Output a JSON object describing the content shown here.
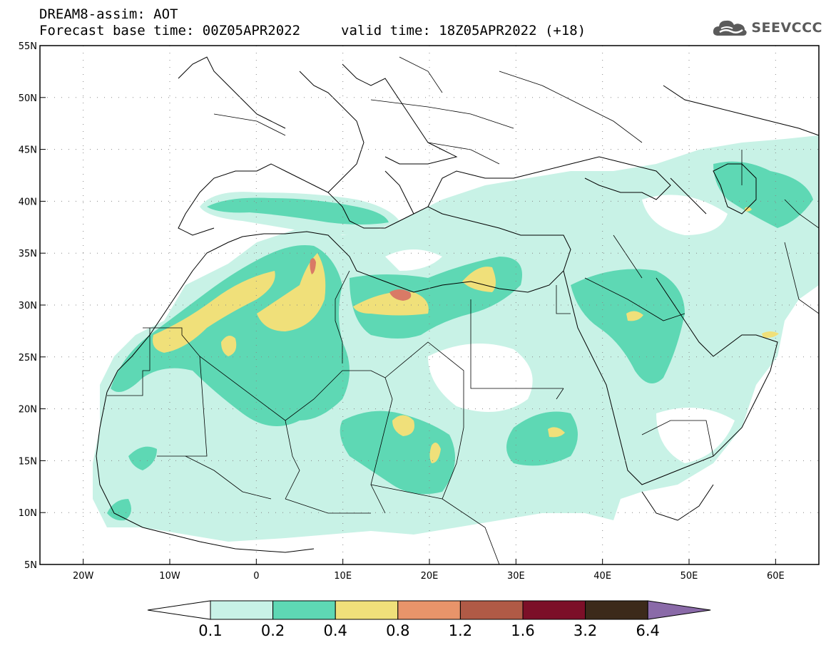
{
  "title": {
    "line1": "DREAM8-assim: AOT",
    "line2": "Forecast base time: 00Z05APR2022",
    "valid": "valid time: 18Z05APR2022 (+18)"
  },
  "logo": {
    "text": "SEEVCCC",
    "icon": "cloud-icon"
  },
  "axes": {
    "lon_ticks": [
      {
        "value": -20,
        "label": "20W"
      },
      {
        "value": -10,
        "label": "10W"
      },
      {
        "value": 0,
        "label": "0"
      },
      {
        "value": 10,
        "label": "10E"
      },
      {
        "value": 20,
        "label": "20E"
      },
      {
        "value": 30,
        "label": "30E"
      },
      {
        "value": 40,
        "label": "40E"
      },
      {
        "value": 50,
        "label": "50E"
      },
      {
        "value": 60,
        "label": "60E"
      }
    ],
    "lat_ticks": [
      {
        "value": 5,
        "label": "5N"
      },
      {
        "value": 10,
        "label": "10N"
      },
      {
        "value": 15,
        "label": "15N"
      },
      {
        "value": 20,
        "label": "20N"
      },
      {
        "value": 25,
        "label": "25N"
      },
      {
        "value": 30,
        "label": "30N"
      },
      {
        "value": 35,
        "label": "35N"
      },
      {
        "value": 40,
        "label": "40N"
      },
      {
        "value": 45,
        "label": "45N"
      },
      {
        "value": 50,
        "label": "50N"
      },
      {
        "value": 55,
        "label": "55N"
      }
    ],
    "lon_range": [
      -25,
      65
    ],
    "lat_range": [
      5,
      55
    ]
  },
  "colorbar": {
    "levels": [
      "0.1",
      "0.2",
      "0.4",
      "0.8",
      "1.2",
      "1.6",
      "3.2",
      "6.4"
    ],
    "colors": [
      "#ffffff",
      "#c8f2e6",
      "#5ed8b4",
      "#f0e07a",
      "#e8946a",
      "#b05a46",
      "#7c0f28",
      "#3c2a1a",
      "#8a6aa8"
    ]
  }
}
